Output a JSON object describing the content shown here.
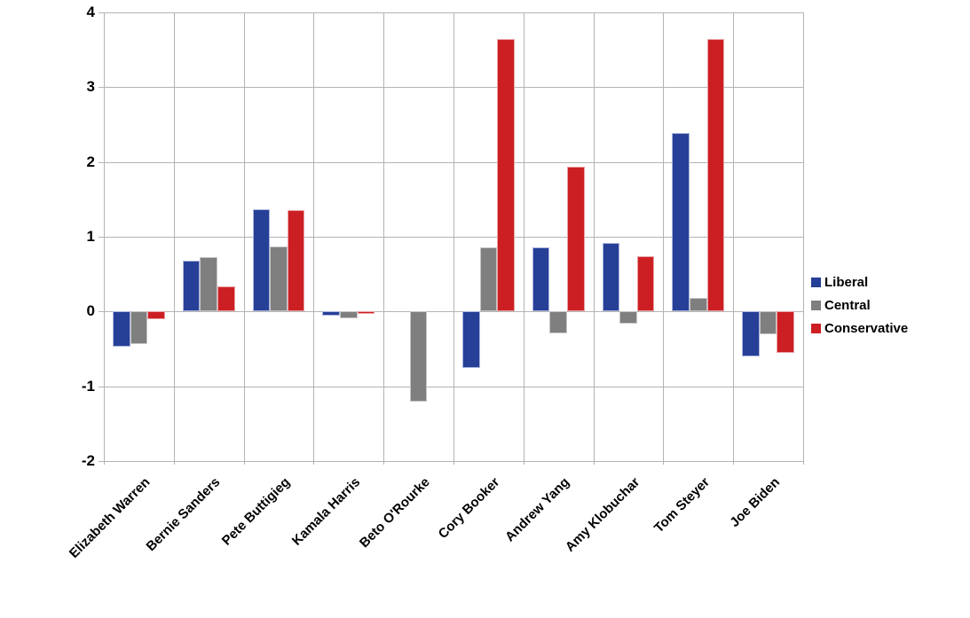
{
  "chart_data": {
    "type": "bar",
    "title": "",
    "xlabel": "",
    "ylabel": "",
    "categories": [
      "Elizabeth Warren",
      "Bernie Sanders",
      "Pete Buttigieg",
      "Kamala Harris",
      "Beto O'Rourke",
      "Cory Booker",
      "Andrew Yang",
      "Amy Klobuchar",
      "Tom Steyer",
      "Joe Biden"
    ],
    "series": [
      {
        "name": "Liberal",
        "color": "#263f97",
        "border_color": "#aab6dd",
        "values": [
          -0.47,
          0.68,
          1.37,
          -0.05,
          0,
          -0.75,
          0.86,
          0.92,
          2.39,
          -0.6
        ]
      },
      {
        "name": "Central",
        "color": "#7f7f7f",
        "border_color": "#c6c6c6",
        "values": [
          -0.43,
          0.73,
          0.87,
          -0.09,
          -1.2,
          0.86,
          -0.29,
          -0.16,
          0.18,
          -0.31
        ]
      },
      {
        "name": "Conservative",
        "color": "#cc1f24",
        "border_color": "#e9a2a4",
        "values": [
          -0.1,
          0.34,
          1.36,
          -0.03,
          0,
          3.65,
          1.94,
          0.74,
          3.65,
          -0.55
        ]
      }
    ],
    "ylim": [
      -2,
      4
    ],
    "yticks": [
      4,
      3,
      2,
      1,
      0,
      -1,
      -2
    ],
    "grid": true,
    "legend_position": "right",
    "colors": {
      "grid": "#b3b3b3",
      "axis": "#b3b3b3",
      "text": "#000000",
      "background": "#ffffff"
    }
  }
}
